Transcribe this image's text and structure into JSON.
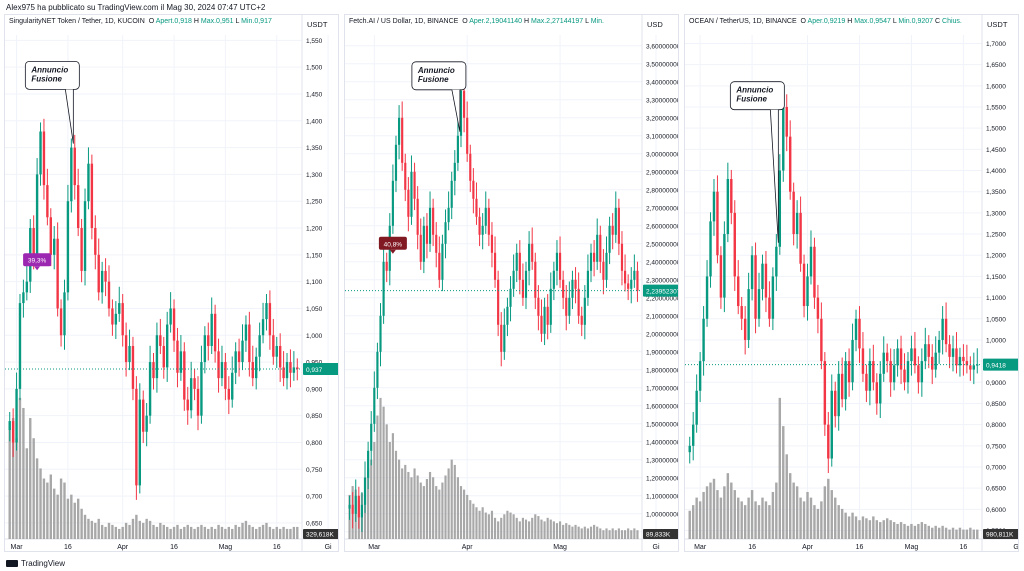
{
  "header": {
    "text": "Alex975 ha pubblicato su TradingView.com il Mag 30, 2024 07:47 UTC+2"
  },
  "footer": {
    "brand": "TradingView"
  },
  "chart_data": [
    {
      "type": "candlestick",
      "title": "SingularityNET Token / Tether, 1D, KUCOIN",
      "ohlc_text": {
        "o_label": "O",
        "o": "Apert.0,918",
        "h_label": "H",
        "h": "Max.0,951",
        "l_label": "L",
        "l": "Min.0,917"
      },
      "currency": "USDT",
      "y_ticks": [
        "1,550",
        "1,500",
        "1,450",
        "1,400",
        "1,350",
        "1,300",
        "1,250",
        "1,200",
        "1,150",
        "1,100",
        "1,050",
        "1,000",
        "0,950",
        "0,900",
        "0,850",
        "0,800",
        "0,750",
        "0,700",
        "0,650"
      ],
      "ylim": [
        0.62,
        1.56
      ],
      "x_ticks": [
        {
          "label": "Mar",
          "index": 2
        },
        {
          "label": "16",
          "index": 17
        },
        {
          "label": "Apr",
          "index": 33
        },
        {
          "label": "16",
          "index": 48
        },
        {
          "label": "Mag",
          "index": 63
        },
        {
          "label": "16",
          "index": 78
        },
        {
          "label": "Gi",
          "index": 93
        }
      ],
      "current_price": 0.937,
      "current_price_label": "0,937",
      "volume_label": "329,618K",
      "badge": {
        "text": "39,3%",
        "color": "#9c27b0",
        "index": 8,
        "price": 1.14
      },
      "annotation": {
        "text": [
          "Annuncio",
          "Fusione"
        ],
        "index": 18,
        "price": 1.44
      },
      "close": [
        0.84,
        0.8,
        0.9,
        1.06,
        1.08,
        1.1,
        1.2,
        1.15,
        1.3,
        1.38,
        1.28,
        1.22,
        1.15,
        1.18,
        1.05,
        1.0,
        1.08,
        1.25,
        1.35,
        1.28,
        1.2,
        1.12,
        1.25,
        1.32,
        1.2,
        1.15,
        1.08,
        1.12,
        1.1,
        1.05,
        1.02,
        1.04,
        1.06,
        1.0,
        0.95,
        0.98,
        0.9,
        0.72,
        0.88,
        0.82,
        0.85,
        0.95,
        0.92,
        1.0,
        0.98,
        0.94,
        1.02,
        1.05,
        0.99,
        0.93,
        0.97,
        0.88,
        0.86,
        0.92,
        0.9,
        0.85,
        0.95,
        1.0,
        0.98,
        1.04,
        0.97,
        0.92,
        0.95,
        0.9,
        0.88,
        0.93,
        0.97,
        0.95,
        0.99,
        1.02,
        0.95,
        0.92,
        0.96,
        1.0,
        1.03,
        1.06,
        1.0,
        0.96,
        0.98,
        0.94,
        0.92,
        0.95,
        0.93,
        0.94,
        0.937
      ],
      "volume": [
        0.55,
        0.6,
        0.5,
        0.7,
        0.65,
        0.45,
        0.6,
        0.5,
        0.4,
        0.35,
        0.3,
        0.28,
        0.32,
        0.25,
        0.22,
        0.3,
        0.28,
        0.2,
        0.22,
        0.18,
        0.2,
        0.15,
        0.12,
        0.1,
        0.09,
        0.08,
        0.1,
        0.07,
        0.06,
        0.08,
        0.07,
        0.06,
        0.05,
        0.06,
        0.08,
        0.07,
        0.1,
        0.12,
        0.09,
        0.08,
        0.1,
        0.09,
        0.07,
        0.06,
        0.08,
        0.07,
        0.06,
        0.05,
        0.06,
        0.07,
        0.05,
        0.06,
        0.07,
        0.06,
        0.05,
        0.06,
        0.07,
        0.06,
        0.05,
        0.06,
        0.05,
        0.07,
        0.06,
        0.05,
        0.06,
        0.05,
        0.07,
        0.06,
        0.08,
        0.09,
        0.07,
        0.06,
        0.05,
        0.06,
        0.07,
        0.08,
        0.06,
        0.05,
        0.06,
        0.05,
        0.06,
        0.05,
        0.05,
        0.06,
        0.06
      ]
    },
    {
      "type": "candlestick",
      "title": "Fetch.AI / US Dollar, 1D, BINANCE",
      "ohlc_text": {
        "o_label": "O",
        "o": "Aper.2,19041140",
        "h_label": "H",
        "h": "Max.2,27144197",
        "l_label": "L",
        "l": "Min."
      },
      "currency": "USD",
      "y_ticks": [
        "3,60000000",
        "3,50000000",
        "3,40000000",
        "3,30000000",
        "3,20000000",
        "3,10000000",
        "3,00000000",
        "2,90000000",
        "2,80000000",
        "2,70000000",
        "2,60000000",
        "2,50000000",
        "2,40000000",
        "2,30000000",
        "2,20000000",
        "2,10000000",
        "2,00000000",
        "1,90000000",
        "1,80000000",
        "1,70000000",
        "1,60000000",
        "1,50000000",
        "1,40000000",
        "1,30000000",
        "1,20000000",
        "1,10000000",
        "1,00000000",
        "0,90000000"
      ],
      "ylim": [
        0.86,
        3.66
      ],
      "x_ticks": [
        {
          "label": "Mar",
          "index": 8
        },
        {
          "label": "Apr",
          "index": 38
        },
        {
          "label": "Mag",
          "index": 68
        },
        {
          "label": "Gi",
          "index": 99
        }
      ],
      "current_price": 2.23952307,
      "current_price_label": "2,23952307",
      "volume_label": "89,833K",
      "badge": {
        "text": "40,8%",
        "color": "#801922",
        "index": 14,
        "price": 2.5
      },
      "annotation": {
        "text": [
          "Annuncio",
          "Fusione"
        ],
        "index": 35,
        "price": 3.3
      },
      "close": [
        1.05,
        1.0,
        1.1,
        0.98,
        1.05,
        1.2,
        1.35,
        1.5,
        1.7,
        1.9,
        2.1,
        2.4,
        2.35,
        2.6,
        2.85,
        3.05,
        3.2,
        2.95,
        2.8,
        2.65,
        2.9,
        2.75,
        2.55,
        2.4,
        2.6,
        2.5,
        2.7,
        2.55,
        2.45,
        2.3,
        2.5,
        2.62,
        2.7,
        2.85,
        2.95,
        3.1,
        3.35,
        3.2,
        3.0,
        2.85,
        2.75,
        2.65,
        2.55,
        2.6,
        2.7,
        2.55,
        2.45,
        2.3,
        2.05,
        1.9,
        2.05,
        2.15,
        2.25,
        2.35,
        2.45,
        2.3,
        2.2,
        2.35,
        2.5,
        2.4,
        2.2,
        2.1,
        2.0,
        2.15,
        2.05,
        2.25,
        2.35,
        2.45,
        2.3,
        2.2,
        2.1,
        2.2,
        2.3,
        2.25,
        2.1,
        2.05,
        2.2,
        2.35,
        2.45,
        2.4,
        2.55,
        2.4,
        2.3,
        2.45,
        2.6,
        2.55,
        2.7,
        2.5,
        2.35,
        2.28,
        2.25,
        2.3,
        2.35,
        2.24
      ],
      "volume": [
        0.25,
        0.3,
        0.28,
        0.22,
        0.26,
        0.35,
        0.4,
        0.45,
        0.55,
        0.7,
        0.8,
        0.75,
        0.65,
        0.55,
        0.6,
        0.5,
        0.45,
        0.4,
        0.42,
        0.38,
        0.35,
        0.4,
        0.36,
        0.32,
        0.3,
        0.34,
        0.38,
        0.35,
        0.3,
        0.28,
        0.32,
        0.36,
        0.4,
        0.45,
        0.42,
        0.35,
        0.3,
        0.28,
        0.25,
        0.22,
        0.2,
        0.18,
        0.16,
        0.18,
        0.15,
        0.14,
        0.16,
        0.12,
        0.1,
        0.12,
        0.14,
        0.16,
        0.15,
        0.14,
        0.12,
        0.1,
        0.12,
        0.11,
        0.1,
        0.12,
        0.14,
        0.13,
        0.11,
        0.1,
        0.12,
        0.11,
        0.1,
        0.09,
        0.1,
        0.08,
        0.09,
        0.08,
        0.07,
        0.08,
        0.07,
        0.06,
        0.07,
        0.06,
        0.07,
        0.08,
        0.07,
        0.06,
        0.05,
        0.06,
        0.05,
        0.06,
        0.05,
        0.06,
        0.05,
        0.05,
        0.06,
        0.05,
        0.06,
        0.05
      ]
    },
    {
      "type": "candlestick",
      "title": "OCEAN / TetherUS, 1D, BINANCE",
      "ohlc_text": {
        "o_label": "O",
        "o": "Aper.0,9219",
        "h_label": "H",
        "h": "Max.0,9547",
        "l_label": "L",
        "l": "Min.0,9207",
        "c_label": "C",
        "c": "Chius."
      },
      "currency": "USDT",
      "y_ticks": [
        "1,7000",
        "1,6500",
        "1,6000",
        "1,5500",
        "1,5000",
        "1,4500",
        "1,4000",
        "1,3500",
        "1,3000",
        "1,2500",
        "1,2000",
        "1,1500",
        "1,1000",
        "1,0500",
        "1,0000",
        "0,9500",
        "0,9000",
        "0,8500",
        "0,8000",
        "0,7500",
        "0,7000",
        "0,6500",
        "0,6000",
        "0,5500"
      ],
      "ylim": [
        0.53,
        1.72
      ],
      "x_ticks": [
        {
          "label": "Mar",
          "index": 3
        },
        {
          "label": "16",
          "index": 18
        },
        {
          "label": "Apr",
          "index": 34
        },
        {
          "label": "16",
          "index": 49
        },
        {
          "label": "Mag",
          "index": 64
        },
        {
          "label": "16",
          "index": 79
        },
        {
          "label": "Giu",
          "index": 95
        }
      ],
      "current_price": 0.9418,
      "current_price_label": "0,9418",
      "volume_label": "980,811K",
      "badge": null,
      "annotation": {
        "text": [
          "Annuncio",
          "Fusione"
        ],
        "index": 25,
        "price": 1.52
      },
      "close": [
        0.75,
        0.8,
        0.88,
        0.95,
        1.05,
        1.15,
        1.28,
        1.35,
        1.2,
        1.1,
        1.25,
        1.38,
        1.3,
        1.15,
        1.08,
        1.05,
        1.0,
        1.12,
        1.2,
        1.05,
        1.12,
        1.18,
        1.1,
        1.05,
        1.15,
        1.22,
        1.4,
        1.55,
        1.48,
        1.35,
        1.25,
        1.3,
        1.18,
        1.08,
        1.15,
        1.22,
        1.1,
        1.05,
        0.95,
        0.8,
        0.72,
        0.88,
        0.82,
        0.92,
        0.86,
        0.95,
        0.9,
        1.0,
        1.05,
        0.98,
        0.92,
        0.88,
        0.95,
        0.9,
        0.85,
        0.92,
        0.97,
        0.95,
        0.9,
        0.94,
        0.98,
        0.93,
        0.9,
        0.95,
        0.98,
        0.94,
        0.9,
        0.95,
        0.99,
        0.96,
        0.93,
        0.97,
        1.0,
        1.05,
        0.99,
        0.96,
        0.98,
        0.94,
        0.96,
        0.95,
        0.94,
        0.93,
        0.94,
        0.9418
      ],
      "volume": [
        0.15,
        0.18,
        0.22,
        0.2,
        0.25,
        0.28,
        0.3,
        0.32,
        0.26,
        0.22,
        0.28,
        0.35,
        0.3,
        0.26,
        0.22,
        0.2,
        0.18,
        0.22,
        0.26,
        0.2,
        0.18,
        0.22,
        0.2,
        0.18,
        0.25,
        0.3,
        0.75,
        0.6,
        0.45,
        0.35,
        0.3,
        0.28,
        0.22,
        0.2,
        0.25,
        0.22,
        0.18,
        0.16,
        0.2,
        0.28,
        0.32,
        0.26,
        0.22,
        0.18,
        0.16,
        0.14,
        0.12,
        0.14,
        0.12,
        0.1,
        0.12,
        0.11,
        0.1,
        0.12,
        0.1,
        0.09,
        0.1,
        0.11,
        0.1,
        0.09,
        0.08,
        0.09,
        0.08,
        0.07,
        0.08,
        0.07,
        0.08,
        0.09,
        0.08,
        0.07,
        0.06,
        0.07,
        0.06,
        0.07,
        0.06,
        0.05,
        0.06,
        0.05,
        0.06,
        0.05,
        0.05,
        0.06,
        0.05,
        0.05
      ]
    }
  ]
}
